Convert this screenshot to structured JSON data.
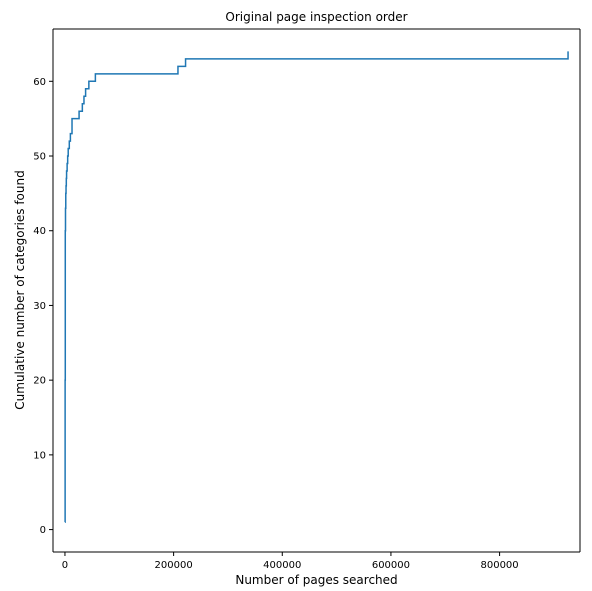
{
  "chart_data": {
    "type": "line",
    "title": "Original page inspection order",
    "xlabel": "Number of pages searched",
    "ylabel": "Cumulative number of categories found",
    "xlim": [
      -22000,
      948000
    ],
    "ylim": [
      -3,
      67
    ],
    "x_ticks": [
      0,
      200000,
      400000,
      600000,
      800000
    ],
    "x_tick_labels": [
      "0",
      "200000",
      "400000",
      "600000",
      "800000"
    ],
    "y_ticks": [
      0,
      10,
      20,
      30,
      40,
      50,
      60
    ],
    "y_tick_labels": [
      "0",
      "10",
      "20",
      "30",
      "40",
      "50",
      "60"
    ],
    "grid": false,
    "line_color": "#1f77b4",
    "series": [
      {
        "step": "post",
        "x": [
          0,
          300,
          600,
          1000,
          1500,
          2000,
          2500,
          3000,
          4000,
          5000,
          6000,
          8000,
          10000,
          13000,
          18000,
          26000,
          32000,
          35000,
          38000,
          44000,
          56000,
          208000,
          222000,
          926000,
          926001
        ],
        "y": [
          1,
          20,
          40,
          43,
          45,
          46,
          47,
          48,
          49,
          50,
          51,
          52,
          53,
          55,
          55,
          56,
          57,
          58,
          59,
          60,
          61,
          62,
          63,
          63,
          64
        ]
      }
    ]
  }
}
